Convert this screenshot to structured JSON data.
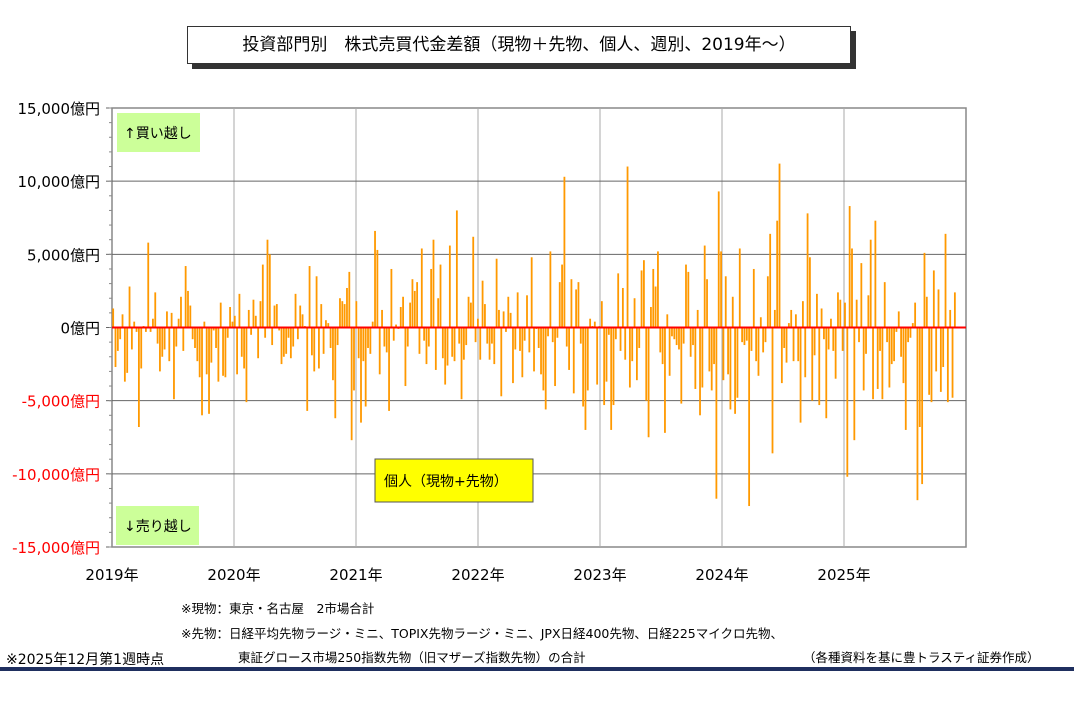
{
  "title": "投資部門別　株式売買代金差額（現物＋先物、個人、週別、2019年～）",
  "chart_data": {
    "type": "bar",
    "title": "投資部門別　株式売買代金差額（現物＋先物、個人、週別、2019年～）",
    "frequency": "weekly",
    "unit": "億円",
    "ylim": [
      -15000,
      15000
    ],
    "y_ticks": [
      15000,
      10000,
      5000,
      0,
      -5000,
      -10000,
      -15000
    ],
    "y_tick_labels": [
      "15,000億円",
      "10,000億円",
      "5,000億円",
      "0億円",
      "-5,000億円",
      "-10,000億円",
      "-15,000億円"
    ],
    "x_tick_labels": [
      "2019年",
      "2020年",
      "2021年",
      "2022年",
      "2023年",
      "2024年",
      "2025年"
    ],
    "grid": true,
    "bar_color": "#ff9900",
    "zero_line_color": "#ff0000",
    "negative_label_color": "#ff0000",
    "legend": "個人（現物+先物）",
    "legend_color": "#ffff00",
    "annotation_buy": "↑買い越し",
    "annotation_sell": "↓売り越し",
    "annotation_color": "#ccff99",
    "values_by_year": {
      "2019": [
        1300,
        -2700,
        -1600,
        -800,
        900,
        -3700,
        -3100,
        2800,
        -1500,
        400,
        -300,
        -6800,
        -2800,
        100,
        -300,
        5800,
        -300,
        600,
        2400,
        -1100,
        -3000,
        -2000,
        -1500,
        1100,
        -2300,
        1000,
        -4900,
        -1300,
        600,
        2100,
        -1600,
        4200,
        2500,
        1500,
        -800,
        -1400,
        -2300,
        -3400,
        -6000,
        400,
        -3200,
        -5900,
        -2400,
        -200,
        -1400,
        -3700,
        1700,
        -3300,
        -3400,
        -700,
        1400,
        400
      ],
      "2020": [
        800,
        -3200,
        2300,
        -2000,
        -2800,
        -5100,
        1200,
        -500,
        1900,
        800,
        -2100,
        1800,
        4300,
        -700,
        6000,
        5000,
        -1200,
        1500,
        1600,
        -200,
        -2500,
        -2000,
        -1800,
        -700,
        -2100,
        -1300,
        2300,
        -800,
        1500,
        900,
        100,
        -5700,
        4200,
        -1900,
        -3000,
        3500,
        -2800,
        1600,
        -1800,
        500,
        300,
        -1400,
        -3600,
        -6200,
        -1200,
        2000,
        1800,
        1600,
        2700,
        3800,
        -7700,
        -4300
      ],
      "2021": [
        1800,
        -2100,
        -6500,
        -2300,
        -5400,
        -1400,
        -1800,
        400,
        6600,
        5300,
        -3200,
        1200,
        -1300,
        -1700,
        -5700,
        4000,
        -900,
        200,
        -100,
        1400,
        2100,
        -4000,
        -1300,
        1700,
        3300,
        2500,
        3100,
        -1800,
        5400,
        -900,
        -2500,
        -1300,
        4000,
        6000,
        -2900,
        2000,
        4300,
        -2100,
        -3900,
        -2600,
        5600,
        -2000,
        -2300,
        8000,
        -1100,
        -4900,
        -2200,
        -1200,
        2100,
        1700,
        6200,
        -1000
      ],
      "2022": [
        600,
        -2200,
        3200,
        1600,
        -1100,
        -2200,
        -1100,
        -2500,
        4700,
        1200,
        -4700,
        1100,
        -300,
        2100,
        1000,
        -3800,
        -1500,
        2400,
        -1600,
        -3400,
        -900,
        2200,
        -1700,
        4800,
        -3000,
        -100,
        -1400,
        -3200,
        -4300,
        -5600,
        -600,
        5200,
        -1000,
        -4000,
        -700,
        3100,
        4300,
        10300,
        -1300,
        -2900,
        3300,
        -4500,
        2600,
        3100,
        -1100,
        -5400,
        -7000,
        -4300,
        600,
        100,
        400,
        -3900
      ],
      "2023": [
        100,
        1800,
        -5300,
        -3700,
        -500,
        -7000,
        -5300,
        -800,
        3700,
        -1600,
        2700,
        -2200,
        11000,
        -4100,
        -2300,
        2000,
        -3600,
        -1400,
        3900,
        4600,
        -5000,
        -7500,
        1400,
        4000,
        2800,
        5200,
        -1700,
        -2500,
        -7200,
        900,
        -3300,
        -600,
        -800,
        -1200,
        -1500,
        -5200,
        -1100,
        4300,
        3800,
        -2000,
        -1200,
        -4200,
        1200,
        -6000,
        -4100,
        5600,
        3300,
        -3000,
        -4300,
        -2500,
        -11700,
        9300
      ],
      "2024": [
        5200,
        -3600,
        3500,
        -3200,
        -5600,
        2100,
        -5900,
        -4800,
        5400,
        -1000,
        -1200,
        -900,
        -12200,
        -1600,
        4000,
        -2300,
        -3300,
        700,
        -1700,
        -1000,
        3500,
        6400,
        -8600,
        1200,
        7300,
        11200,
        -3800,
        -1400,
        -2400,
        300,
        1200,
        -2300,
        900,
        -2300,
        -6500,
        1800,
        -3400,
        7800,
        4800,
        -5000,
        -1900,
        2300,
        -5300,
        1300,
        -800,
        -6200,
        -1500,
        600,
        -1600,
        -3500,
        2400,
        1900
      ],
      "2025": [
        -1600,
        1700,
        -10200,
        8300,
        5400,
        -7700,
        1900,
        -1000,
        4400,
        -4300,
        -1800,
        2200,
        6000,
        -4900,
        7300,
        -4200,
        -1600,
        -4900,
        3100,
        -1000,
        -4100,
        -2500,
        -2300,
        -300,
        1100,
        -2000,
        -3800,
        -7000,
        -1000,
        -700,
        300,
        1700,
        -11800,
        -6800,
        -10700,
        5100,
        2100,
        -4600,
        -5100,
        3900,
        -3000,
        2600,
        -4400,
        -2700,
        6400,
        -5100,
        1200,
        -4800,
        2400
      ]
    }
  },
  "notes": {
    "spot": "※現物：東京・名古屋　2市場合計",
    "futures_1": "※先物：日経平均先物ラージ・ミニ、TOPIX先物ラージ・ミニ、JPX日経400先物、日経225マイクロ先物、",
    "futures_2": "東証グロース市場250指数先物（旧マザーズ指数先物）の合計",
    "as_of": "※2025年12月第1週時点",
    "source": "（各種資料を基に豊トラスティ証券作成）"
  }
}
